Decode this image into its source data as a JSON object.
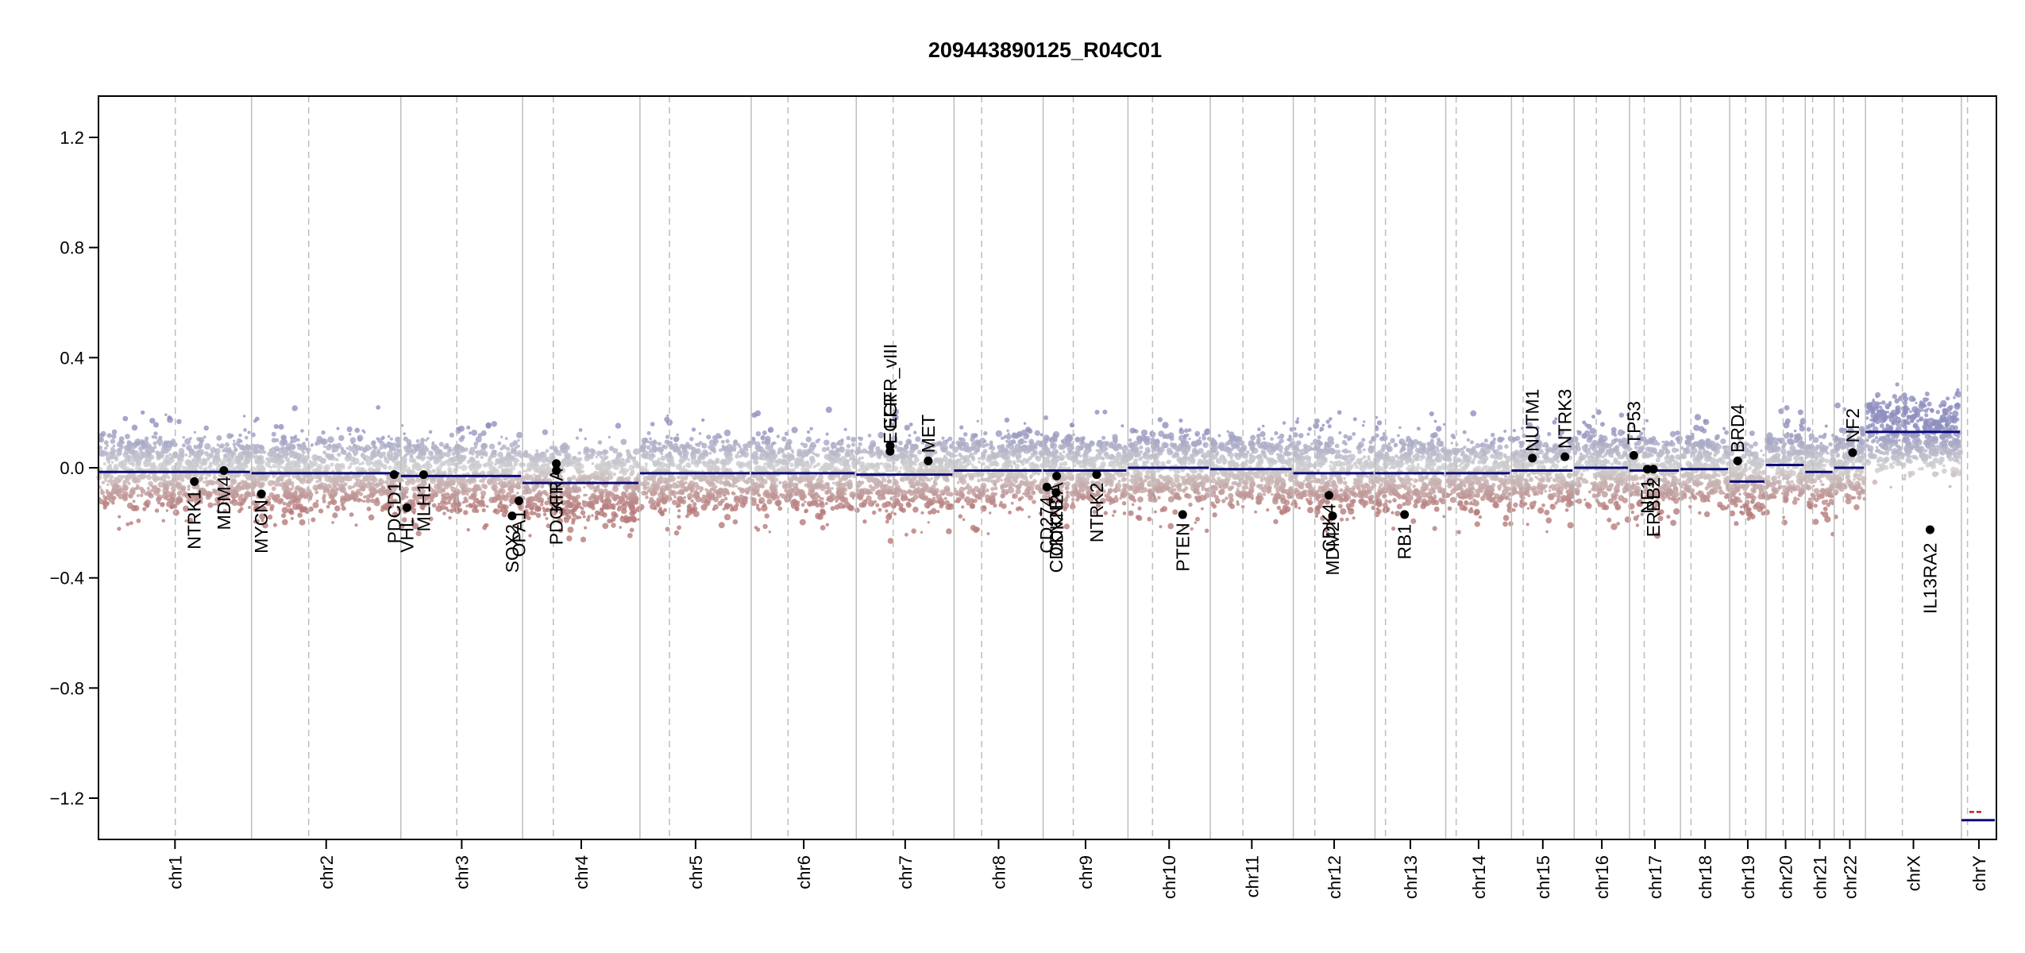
{
  "chart_data": {
    "type": "scatter",
    "title": "209443890125_R04C01",
    "xlabel": "",
    "ylabel": "",
    "ylim": [
      -1.35,
      1.35
    ],
    "yticks": [
      1.2,
      0.8,
      0.4,
      0.0,
      -0.4,
      -0.8,
      -1.2
    ],
    "ytick_labels": [
      "1.2",
      "0.8",
      "0.4",
      "0.0",
      "−0.4",
      "−0.8",
      "−1.2"
    ],
    "grid": false,
    "legend": "none",
    "colors": {
      "gain": "#8f8fbf",
      "loss": "#b77a7a",
      "neutral": "#d0d0d0",
      "segment": "#0b0b7a",
      "gene_point": "#000000",
      "boundary": "#bdbdbd"
    },
    "chromosomes": [
      {
        "name": "chr1",
        "start": 0,
        "end": 249,
        "centromere": 125
      },
      {
        "name": "chr2",
        "start": 249,
        "end": 492,
        "centromere": 93
      },
      {
        "name": "chr3",
        "start": 492,
        "end": 690,
        "centromere": 91
      },
      {
        "name": "chr4",
        "start": 690,
        "end": 881,
        "centromere": 50
      },
      {
        "name": "chr5",
        "start": 881,
        "end": 1062,
        "centromere": 48
      },
      {
        "name": "chr6",
        "start": 1062,
        "end": 1233,
        "centromere": 60
      },
      {
        "name": "chr7",
        "start": 1233,
        "end": 1392,
        "centromere": 60
      },
      {
        "name": "chr8",
        "start": 1392,
        "end": 1537,
        "centromere": 45
      },
      {
        "name": "chr9",
        "start": 1537,
        "end": 1675,
        "centromere": 49
      },
      {
        "name": "chr10",
        "start": 1675,
        "end": 1809,
        "centromere": 40
      },
      {
        "name": "chr11",
        "start": 1809,
        "end": 1944,
        "centromere": 53
      },
      {
        "name": "chr12",
        "start": 1944,
        "end": 2077,
        "centromere": 35
      },
      {
        "name": "chr13",
        "start": 2077,
        "end": 2192,
        "centromere": 17
      },
      {
        "name": "chr14",
        "start": 2192,
        "end": 2299,
        "centromere": 17
      },
      {
        "name": "chr15",
        "start": 2299,
        "end": 2401,
        "centromere": 19
      },
      {
        "name": "chr16",
        "start": 2401,
        "end": 2491,
        "centromere": 36
      },
      {
        "name": "chr17",
        "start": 2491,
        "end": 2574,
        "centromere": 24
      },
      {
        "name": "chr18",
        "start": 2574,
        "end": 2654,
        "centromere": 17
      },
      {
        "name": "chr19",
        "start": 2654,
        "end": 2713,
        "centromere": 26
      },
      {
        "name": "chr20",
        "start": 2713,
        "end": 2777,
        "centromere": 28
      },
      {
        "name": "chr21",
        "start": 2777,
        "end": 2824,
        "centromere": 12
      },
      {
        "name": "chr22",
        "start": 2824,
        "end": 2875,
        "centromere": 15
      },
      {
        "name": "chrX",
        "start": 2875,
        "end": 3031,
        "centromere": 60
      },
      {
        "name": "chrY",
        "start": 3031,
        "end": 3088,
        "centromere": 10
      }
    ],
    "segments": [
      {
        "chr": "chr1",
        "x0": 0,
        "x1": 249,
        "y": -0.015
      },
      {
        "chr": "chr2",
        "x0": 249,
        "x1": 492,
        "y": -0.02
      },
      {
        "chr": "chr3",
        "x0": 492,
        "x1": 690,
        "y": -0.03
      },
      {
        "chr": "chr4",
        "x0": 690,
        "x1": 881,
        "y": -0.055
      },
      {
        "chr": "chr5",
        "x0": 881,
        "x1": 1062,
        "y": -0.02
      },
      {
        "chr": "chr6",
        "x0": 1062,
        "x1": 1233,
        "y": -0.02
      },
      {
        "chr": "chr7",
        "x0": 1233,
        "x1": 1392,
        "y": -0.025
      },
      {
        "chr": "chr8",
        "x0": 1392,
        "x1": 1537,
        "y": -0.01
      },
      {
        "chr": "chr9",
        "x0": 1537,
        "x1": 1675,
        "y": -0.01
      },
      {
        "chr": "chr10",
        "x0": 1675,
        "x1": 1809,
        "y": 0.0
      },
      {
        "chr": "chr11",
        "x0": 1809,
        "x1": 1944,
        "y": -0.005
      },
      {
        "chr": "chr12",
        "x0": 1944,
        "x1": 2077,
        "y": -0.02
      },
      {
        "chr": "chr13",
        "x0": 2077,
        "x1": 2192,
        "y": -0.02
      },
      {
        "chr": "chr14",
        "x0": 2192,
        "x1": 2299,
        "y": -0.02
      },
      {
        "chr": "chr15",
        "x0": 2299,
        "x1": 2401,
        "y": -0.01
      },
      {
        "chr": "chr16",
        "x0": 2401,
        "x1": 2491,
        "y": 0.0
      },
      {
        "chr": "chr17",
        "x0": 2491,
        "x1": 2574,
        "y": -0.01
      },
      {
        "chr": "chr18",
        "x0": 2574,
        "x1": 2654,
        "y": -0.005
      },
      {
        "chr": "chr19",
        "x0": 2654,
        "x1": 2713,
        "y": -0.05
      },
      {
        "chr": "chr20",
        "x0": 2713,
        "x1": 2777,
        "y": 0.01
      },
      {
        "chr": "chr21",
        "x0": 2777,
        "x1": 2824,
        "y": -0.015
      },
      {
        "chr": "chr22",
        "x0": 2824,
        "x1": 2875,
        "y": 0.0
      },
      {
        "chr": "chrX",
        "x0": 2875,
        "x1": 3031,
        "y": 0.13
      },
      {
        "chr": "chrY",
        "x0": 3031,
        "x1": 3088,
        "y": -1.28
      }
    ],
    "chrY_segment_red": {
      "x0": 3031,
      "x1": 3088,
      "y": -1.25
    },
    "genes": [
      {
        "name": "NTRK1",
        "x": 156,
        "y": -0.05
      },
      {
        "name": "MDM4",
        "x": 204,
        "y": -0.01
      },
      {
        "name": "MYCN",
        "x": 265,
        "y": -0.095
      },
      {
        "name": "PDCD1",
        "x": 481,
        "y": -0.025
      },
      {
        "name": "VHL",
        "x": 502,
        "y": -0.145
      },
      {
        "name": "MLH1",
        "x": 529,
        "y": -0.025
      },
      {
        "name": "SOX2",
        "x": 673,
        "y": -0.175
      },
      {
        "name": "OPA1",
        "x": 684,
        "y": -0.12
      },
      {
        "name": "KIT",
        "x": 745,
        "y": -0.01
      },
      {
        "name": "PDGFRA",
        "x": 745,
        "y": 0.015
      },
      {
        "name": "EGFR",
        "x": 1288,
        "y": 0.06
      },
      {
        "name": "EGFR_vIII",
        "x": 1288,
        "y": 0.08
      },
      {
        "name": "MET",
        "x": 1350,
        "y": 0.025
      },
      {
        "name": "CD274",
        "x": 1543,
        "y": -0.07
      },
      {
        "name": "CDKN2B",
        "x": 1558,
        "y": -0.09
      },
      {
        "name": "CDKN2A",
        "x": 1559,
        "y": -0.03
      },
      {
        "name": "NTRK2",
        "x": 1624,
        "y": -0.025
      },
      {
        "name": "PTEN",
        "x": 1764,
        "y": -0.17
      },
      {
        "name": "CDK4",
        "x": 2002,
        "y": -0.1
      },
      {
        "name": "MDM2",
        "x": 2008,
        "y": -0.175
      },
      {
        "name": "RB1",
        "x": 2125,
        "y": -0.17
      },
      {
        "name": "NUTM1",
        "x": 2333,
        "y": 0.035
      },
      {
        "name": "NTRK3",
        "x": 2386,
        "y": 0.04
      },
      {
        "name": "TP53",
        "x": 2498,
        "y": 0.045
      },
      {
        "name": "NF1",
        "x": 2520,
        "y": -0.005
      },
      {
        "name": "ERBB2",
        "x": 2530,
        "y": -0.005
      },
      {
        "name": "BRD4",
        "x": 2667,
        "y": 0.025
      },
      {
        "name": "NF2",
        "x": 2854,
        "y": 0.055
      },
      {
        "name": "IL13RA2",
        "x": 2980,
        "y": -0.225
      }
    ]
  }
}
